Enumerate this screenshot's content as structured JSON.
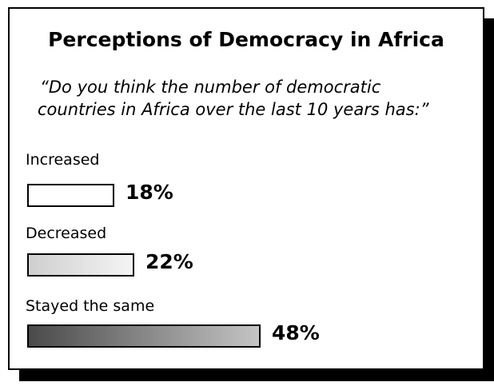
{
  "chart_data": {
    "type": "bar",
    "orientation": "horizontal",
    "title": "Perceptions of Democracy in Africa",
    "subtitle_lines": [
      "“Do you think the number of democratic",
      "countries in Africa over the last 10 years has:”"
    ],
    "categories": [
      "Increased",
      "Decreased",
      "Stayed the same"
    ],
    "values": [
      18,
      22,
      48
    ],
    "value_labels": [
      "18%",
      "22%",
      "48%"
    ],
    "unit": "%",
    "bar_fills": [
      "#ffffff",
      "linear-gradient(to right, #cfcfcf, #f4f4f4)",
      "linear-gradient(to right, #4a4a4a, #c4c4c4)"
    ]
  }
}
